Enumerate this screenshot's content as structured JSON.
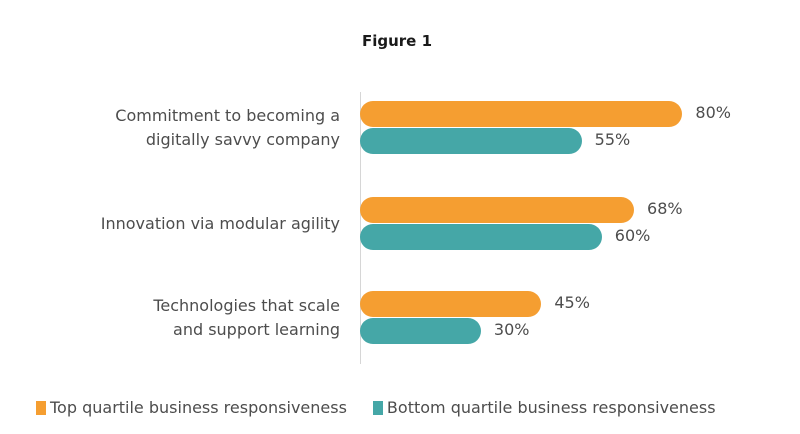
{
  "chart_data": {
    "type": "bar",
    "orientation": "horizontal",
    "title": "Figure 1",
    "xlabel": "",
    "ylabel": "",
    "xlim": [
      0,
      100
    ],
    "grid": false,
    "legend_position": "bottom",
    "categories": [
      "Commitment to becoming a digitally savvy company",
      "Innovation via modular agility",
      "Technologies that scale and support learning"
    ],
    "category_lines": [
      [
        "Commitment to becoming a",
        "digitally savvy company"
      ],
      [
        "Innovation via modular agility"
      ],
      [
        "Technologies that scale",
        "and support learning"
      ]
    ],
    "series": [
      {
        "name": "Top quartile business responsiveness",
        "color": "#f59e31",
        "values": [
          80,
          68,
          45
        ],
        "labels": [
          "80%",
          "68%",
          "45%"
        ]
      },
      {
        "name": "Bottom quartile business responsiveness",
        "color": "#45a7a7",
        "values": [
          55,
          60,
          30
        ],
        "labels": [
          "55%",
          "60%",
          "30%"
        ]
      }
    ]
  }
}
